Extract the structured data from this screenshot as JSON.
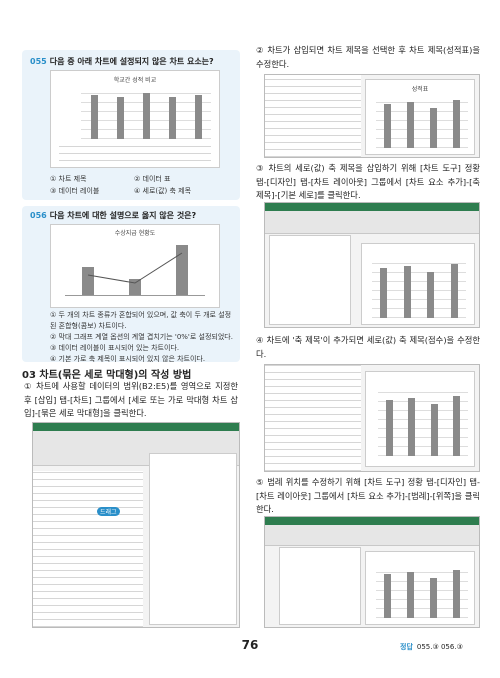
{
  "q055": {
    "number": "055",
    "question": "다음 중 아래 차트에 설정되지 않은 차트 요소는?",
    "chart_title": "학교간 성적 비교",
    "options": [
      "① 차트 제목",
      "② 데이터 표",
      "③ 데이터 레이블",
      "④ 세로(값) 축 제목"
    ]
  },
  "q056": {
    "number": "056",
    "question": "다음 차트에 대한 설명으로 옳지 않은 것은?",
    "chart_title": "수상지급 현황도",
    "options": [
      "① 두 개의 차트 종류가 혼합되어 있으며, 값 축이 두 개로 설정된 혼합형(콤보) 차트이다.",
      "② 막대 그래프 계열 옵션의 계열 겹치기는 '0%'로 설정되었다.",
      "③ 데이터 레이블이 표시되어 있는 차트이다.",
      "④ 기본 가로 축 제목이 표시되어 있지 않은 차트이다."
    ]
  },
  "section": {
    "title": "03 차트(묶은 세로 막대형)의 작성 방법"
  },
  "steps": [
    "① 차트에 사용할 데이터의 범위(B2:E5)를 영역으로 지정한 후 [삽입] 탭-[차트] 그룹에서 [세로 또는 가로 막대형 차트 삽입]-[묶은 세로 막대형]을 클릭한다.",
    "② 차트가 삽입되면 차트 제목을 선택한 후 차트 제목(성적표)을 수정한다.",
    "③ 차트의 세로(값) 축 제목을 삽입하기 위해 [차트 도구] 정황 탭-[디자인] 탭-[차트 레이아웃] 그룹에서 [차트 요소 추가]-[축 제목]-[기본 세로]를 클릭한다.",
    "④ 차트에 '축 제목'이 추가되면 세로(값) 축 제목(점수)을 수정한다.",
    "⑤ 범례 위치를 수정하기 위해 [차트 도구] 정황 탭-[디자인] 탭-[차트 레이아웃] 그룹에서 [차트 요소 추가]-[범례]-[위쪽]을 클릭한다."
  ],
  "screens": {
    "drag_label": "드래그",
    "chart_title": "성적표"
  },
  "footer": {
    "page": "76",
    "answer_label": "정답",
    "answers": "055.③  056.③"
  }
}
